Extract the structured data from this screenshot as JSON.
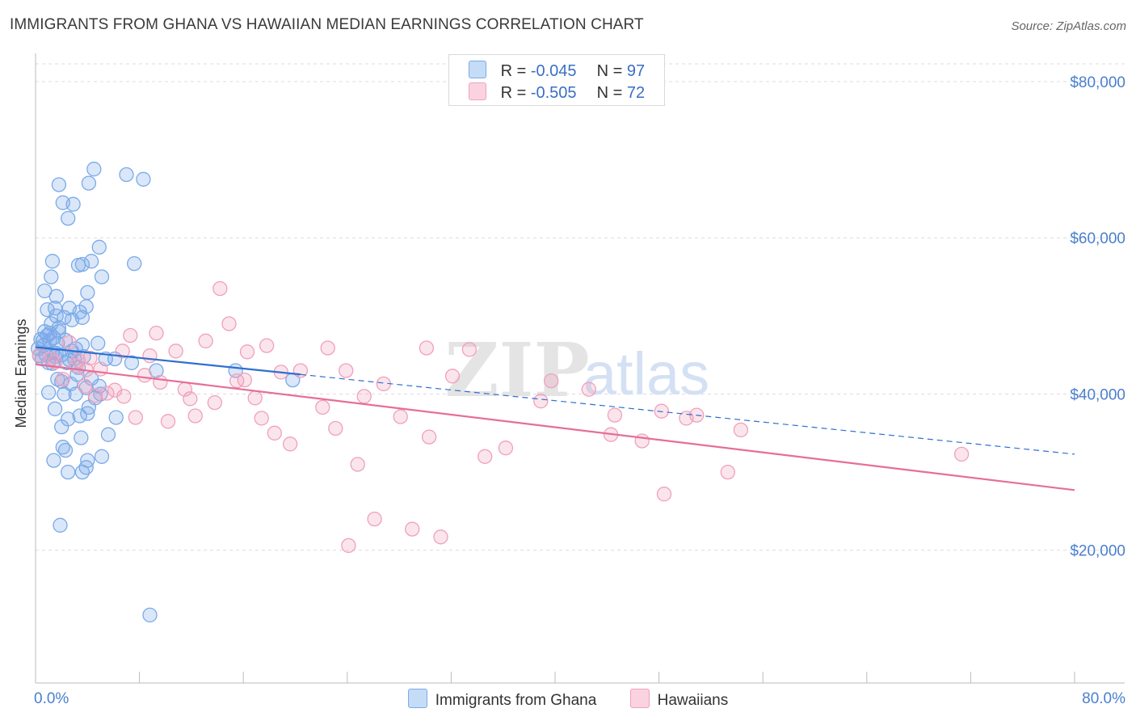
{
  "header": {
    "title": "IMMIGRANTS FROM GHANA VS HAWAIIAN MEDIAN EARNINGS CORRELATION CHART",
    "source": "Source: ZipAtlas.com"
  },
  "legend": {
    "ghana": {
      "r_label": "R =",
      "r_value": "-0.045",
      "n_label": "N =",
      "n_value": "97",
      "color": "#7aaae8"
    },
    "hawaiian": {
      "r_label": "R =",
      "r_value": "-0.505",
      "n_label": "N =",
      "n_value": "72",
      "color": "#f0a0bc"
    }
  },
  "watermark": {
    "zip": "ZIP",
    "atlas": "atlas"
  },
  "chart_data": {
    "type": "scatter",
    "title": "IMMIGRANTS FROM GHANA VS HAWAIIAN MEDIAN EARNINGS CORRELATION CHART",
    "xlabel": "",
    "ylabel": "Median Earnings",
    "xlim": [
      0,
      80
    ],
    "ylim": [
      3000,
      83000
    ],
    "x_tick_labels": [
      "0.0%",
      "80.0%"
    ],
    "y_ticks": [
      20000,
      40000,
      60000,
      80000
    ],
    "y_tick_labels": [
      "$20,000",
      "$40,000",
      "$60,000",
      "$80,000"
    ],
    "grid": true,
    "series": [
      {
        "name": "Immigrants from Ghana",
        "color": "#7aaae8",
        "line_color": "#2f6fd0",
        "trend": {
          "x": [
            0,
            80
          ],
          "y": [
            46000,
            32300
          ],
          "solid_until_x": 20.4
        },
        "points": [
          [
            0.2,
            45800
          ],
          [
            0.4,
            47000
          ],
          [
            0.5,
            44500
          ],
          [
            0.6,
            46200
          ],
          [
            0.7,
            48000
          ],
          [
            0.8,
            45000
          ],
          [
            0.9,
            47500
          ],
          [
            1.0,
            44000
          ],
          [
            1.1,
            46800
          ],
          [
            1.2,
            49000
          ],
          [
            1.3,
            45300
          ],
          [
            1.4,
            47200
          ],
          [
            1.5,
            44800
          ],
          [
            1.6,
            50000
          ],
          [
            1.7,
            46500
          ],
          [
            1.8,
            48500
          ],
          [
            0.7,
            53200
          ],
          [
            0.9,
            50800
          ],
          [
            1.2,
            55000
          ],
          [
            1.3,
            57000
          ],
          [
            1.5,
            51000
          ],
          [
            1.6,
            52500
          ],
          [
            1.8,
            48000
          ],
          [
            2.0,
            45000
          ],
          [
            2.2,
            49800
          ],
          [
            2.4,
            44000
          ],
          [
            2.6,
            51000
          ],
          [
            2.8,
            49500
          ],
          [
            3.0,
            44500
          ],
          [
            3.2,
            42500
          ],
          [
            3.4,
            50500
          ],
          [
            3.6,
            49800
          ],
          [
            1.8,
            66800
          ],
          [
            2.1,
            64500
          ],
          [
            2.5,
            62500
          ],
          [
            2.9,
            64300
          ],
          [
            4.1,
            67000
          ],
          [
            4.5,
            68800
          ],
          [
            7.0,
            68100
          ],
          [
            8.3,
            67500
          ],
          [
            3.3,
            56500
          ],
          [
            3.6,
            56600
          ],
          [
            4.3,
            57000
          ],
          [
            4.9,
            58800
          ],
          [
            5.1,
            55000
          ],
          [
            7.6,
            56700
          ],
          [
            4.0,
            53000
          ],
          [
            3.9,
            51200
          ],
          [
            1.0,
            40200
          ],
          [
            1.5,
            38100
          ],
          [
            1.7,
            41900
          ],
          [
            2.0,
            41600
          ],
          [
            2.2,
            40000
          ],
          [
            2.5,
            36800
          ],
          [
            2.7,
            41300
          ],
          [
            3.1,
            40000
          ],
          [
            3.3,
            43400
          ],
          [
            3.7,
            44800
          ],
          [
            3.9,
            40800
          ],
          [
            4.1,
            38300
          ],
          [
            4.3,
            42000
          ],
          [
            4.6,
            39500
          ],
          [
            4.9,
            41000
          ],
          [
            5.1,
            32000
          ],
          [
            6.2,
            37000
          ],
          [
            7.4,
            44000
          ],
          [
            9.3,
            43000
          ],
          [
            15.4,
            43000
          ],
          [
            19.8,
            41800
          ],
          [
            2.1,
            33200
          ],
          [
            2.3,
            32800
          ],
          [
            3.5,
            34400
          ],
          [
            5.0,
            40000
          ],
          [
            2.0,
            35800
          ],
          [
            1.4,
            31500
          ],
          [
            2.5,
            30000
          ],
          [
            3.6,
            30000
          ],
          [
            3.9,
            30600
          ],
          [
            4.0,
            31500
          ],
          [
            5.6,
            34800
          ],
          [
            3.4,
            37200
          ],
          [
            4.0,
            37500
          ],
          [
            1.9,
            23200
          ],
          [
            8.8,
            11700
          ],
          [
            6.1,
            44500
          ],
          [
            2.8,
            45500
          ],
          [
            3.6,
            46300
          ],
          [
            0.6,
            46900
          ],
          [
            1.1,
            47800
          ],
          [
            1.3,
            43900
          ],
          [
            1.6,
            45200
          ],
          [
            2.3,
            46900
          ],
          [
            2.6,
            44400
          ],
          [
            3.1,
            45800
          ],
          [
            4.8,
            46500
          ],
          [
            0.3,
            44900
          ],
          [
            5.4,
            44500
          ]
        ]
      },
      {
        "name": "Hawaiians",
        "color": "#f0a0bc",
        "line_color": "#e66e98",
        "trend": {
          "x": [
            0,
            80
          ],
          "y": [
            43800,
            27700
          ]
        },
        "points": [
          [
            0.3,
            45000
          ],
          [
            1.2,
            44500
          ],
          [
            2.6,
            46600
          ],
          [
            3.1,
            43600
          ],
          [
            3.3,
            44300
          ],
          [
            3.8,
            41000
          ],
          [
            4.2,
            44600
          ],
          [
            4.6,
            39800
          ],
          [
            5.0,
            43200
          ],
          [
            5.5,
            40100
          ],
          [
            6.1,
            40500
          ],
          [
            6.7,
            45500
          ],
          [
            7.3,
            47500
          ],
          [
            7.7,
            37000
          ],
          [
            8.4,
            42400
          ],
          [
            8.8,
            44900
          ],
          [
            9.3,
            47800
          ],
          [
            9.6,
            41500
          ],
          [
            10.2,
            36500
          ],
          [
            10.8,
            45500
          ],
          [
            11.5,
            40600
          ],
          [
            11.9,
            39400
          ],
          [
            12.3,
            37200
          ],
          [
            13.1,
            46800
          ],
          [
            13.8,
            38900
          ],
          [
            14.2,
            53500
          ],
          [
            14.9,
            49000
          ],
          [
            15.5,
            41700
          ],
          [
            16.1,
            41800
          ],
          [
            16.3,
            45400
          ],
          [
            16.9,
            39500
          ],
          [
            17.4,
            36900
          ],
          [
            17.8,
            46200
          ],
          [
            18.4,
            35000
          ],
          [
            18.9,
            42800
          ],
          [
            19.6,
            33600
          ],
          [
            20.4,
            43000
          ],
          [
            22.1,
            38300
          ],
          [
            22.5,
            45900
          ],
          [
            23.1,
            35600
          ],
          [
            23.9,
            43000
          ],
          [
            24.8,
            31000
          ],
          [
            25.3,
            39700
          ],
          [
            26.1,
            24000
          ],
          [
            26.8,
            41300
          ],
          [
            28.1,
            37100
          ],
          [
            29.0,
            22700
          ],
          [
            30.1,
            45900
          ],
          [
            30.3,
            34500
          ],
          [
            31.2,
            21700
          ],
          [
            32.1,
            42300
          ],
          [
            33.4,
            45700
          ],
          [
            34.6,
            32000
          ],
          [
            36.2,
            33100
          ],
          [
            38.9,
            39100
          ],
          [
            39.7,
            41700
          ],
          [
            42.6,
            40600
          ],
          [
            44.6,
            37300
          ],
          [
            44.3,
            34800
          ],
          [
            46.7,
            34000
          ],
          [
            48.4,
            27200
          ],
          [
            48.2,
            37800
          ],
          [
            50.1,
            36900
          ],
          [
            50.9,
            37300
          ],
          [
            53.3,
            30000
          ],
          [
            54.3,
            35400
          ],
          [
            71.3,
            32300
          ],
          [
            24.1,
            20600
          ],
          [
            3.9,
            43100
          ],
          [
            6.8,
            39700
          ],
          [
            2.1,
            41900
          ],
          [
            1.5,
            44100
          ]
        ]
      }
    ]
  },
  "bottom_legend": {
    "items": [
      {
        "label": "Immigrants from Ghana",
        "color": "#7aaae8"
      },
      {
        "label": "Hawaiians",
        "color": "#f0a0bc"
      }
    ]
  }
}
